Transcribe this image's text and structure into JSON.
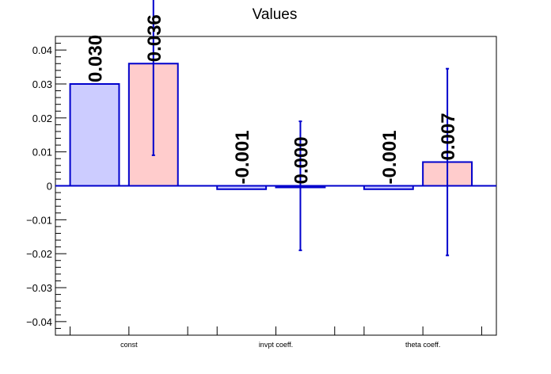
{
  "chart_data": {
    "type": "bar",
    "title": "Values",
    "categories": [
      "const",
      "invpt coeff.",
      "theta coeff."
    ],
    "ylim": [
      -0.044,
      0.044
    ],
    "yticks": [
      -0.04,
      -0.03,
      -0.02,
      -0.01,
      0,
      0.01,
      0.02,
      0.03,
      0.04
    ],
    "ytick_labels": [
      "−0.04",
      "−0.03",
      "−0.02",
      "−0.01",
      "0",
      "0.01",
      "0.02",
      "0.03",
      "0.04"
    ],
    "series": [
      {
        "color": "#ccccff",
        "edge_color": "#0000cc",
        "values": [
          0.03,
          -0.001,
          -0.001
        ],
        "labels": [
          "0.030",
          "-0.001",
          "-0.001"
        ]
      },
      {
        "color": "#ffcccc",
        "edge_color": "#0000cc",
        "values": [
          0.036,
          0.0,
          0.007
        ],
        "labels": [
          "0.036",
          "0.000",
          "0.007"
        ],
        "errors": [
          0.027,
          0.019,
          0.0275
        ]
      }
    ]
  }
}
